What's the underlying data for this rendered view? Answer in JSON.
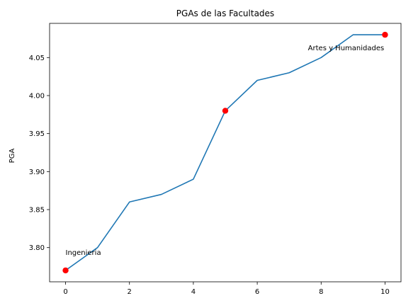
{
  "chart_data": {
    "type": "line",
    "title": "PGAs de las Facultades",
    "xlabel": "",
    "ylabel": "PGA",
    "x": [
      0,
      1,
      2,
      3,
      4,
      5,
      6,
      7,
      8,
      9,
      10
    ],
    "series": [
      {
        "values": [
          3.77,
          3.8,
          3.86,
          3.87,
          3.89,
          3.98,
          4.02,
          4.03,
          4.05,
          4.08,
          4.08
        ],
        "color": "#1f77b4"
      }
    ],
    "highlights": [
      {
        "x": 0,
        "y": 3.77,
        "color": "#ff0000"
      },
      {
        "x": 5,
        "y": 3.98,
        "color": "#ff0000"
      },
      {
        "x": 10,
        "y": 4.08,
        "color": "#ff0000"
      }
    ],
    "annotations": [
      {
        "text": "Ingenieria",
        "x": 0,
        "y": 3.77
      },
      {
        "text": "Artes y Humanidades",
        "x": 10,
        "y": 4.08
      }
    ],
    "xlim": [
      -0.5,
      10.5
    ],
    "ylim": [
      3.755,
      4.095
    ],
    "xticks": [
      0,
      2,
      4,
      6,
      8,
      10
    ],
    "xtick_labels": [
      "0",
      "2",
      "4",
      "6",
      "8",
      "10"
    ],
    "yticks": [
      3.8,
      3.85,
      3.9,
      3.95,
      4.0,
      4.05
    ],
    "ytick_labels": [
      "3.80",
      "3.85",
      "3.90",
      "3.95",
      "4.00",
      "4.05"
    ],
    "grid": false,
    "legend": "none"
  }
}
